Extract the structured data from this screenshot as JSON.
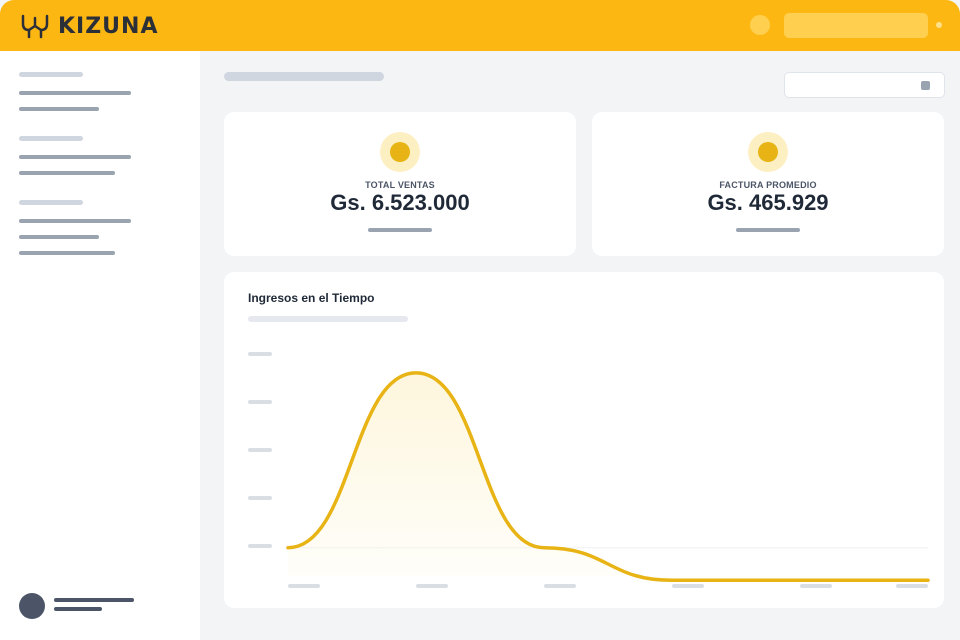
{
  "header": {
    "brand_name": "KIZUNA",
    "brand_color": "#FDB713",
    "logo_icon": "kizuna-logo-icon"
  },
  "kpis": [
    {
      "label": "TOTAL VENTAS",
      "value": "Gs. 6.523.000",
      "icon": "sun-coin-icon"
    },
    {
      "label": "FACTURA PROMEDIO",
      "value": "Gs. 465.929",
      "icon": "sun-coin-icon"
    }
  ],
  "chart": {
    "title": "Ingresos en el Tiempo"
  },
  "chart_data": {
    "type": "area",
    "title": "Ingresos en el Tiempo",
    "xlabel": "",
    "ylabel": "",
    "grid": false,
    "x": [
      0,
      1,
      2,
      3,
      4,
      5
    ],
    "series": [
      {
        "values": [
          0,
          1.02,
          0,
          -0.19,
          -0.19,
          -0.19
        ],
        "color": "#E8B415"
      }
    ],
    "ylim": [
      -0.2,
      1.2
    ],
    "tick_labels": "placeholder-bars"
  }
}
